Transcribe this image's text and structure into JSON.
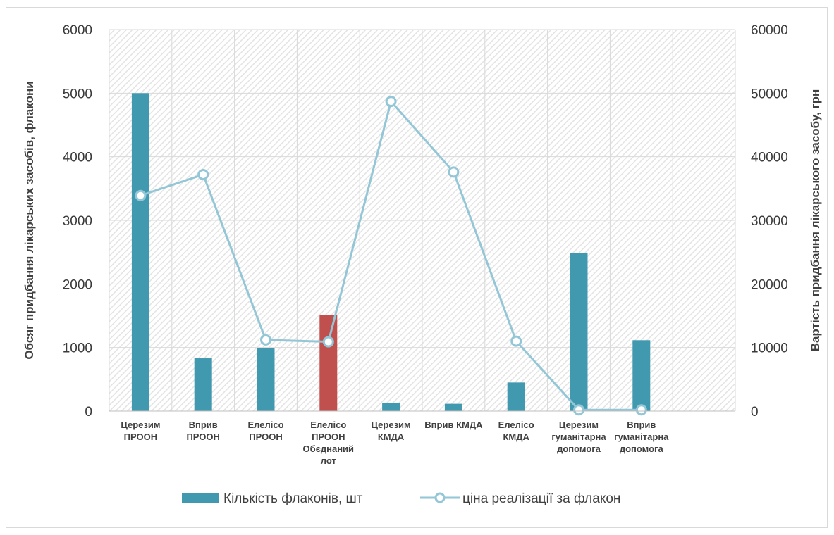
{
  "chart_data": {
    "type": "bar",
    "categories": [
      [
        "Церезим",
        "ПРООН"
      ],
      [
        "Вприв",
        "ПРООН"
      ],
      [
        "Елелісо",
        "ПРООН"
      ],
      [
        "Елелісо",
        "ПРООН",
        "Обєднаний",
        "лот"
      ],
      [
        "Церезим",
        "КМДА"
      ],
      [
        "Вприв КМДА"
      ],
      [
        "Елелісо",
        "КМДА"
      ],
      [
        "Церезим",
        "гуманітарна",
        "допомога"
      ],
      [
        "Вприв",
        "гуманітарна",
        "допомога"
      ],
      []
    ],
    "series": [
      {
        "name": "Кількість флаконів, шт",
        "type": "bar",
        "axis": "left",
        "color": "#4199b0",
        "highlight_color": "#c0504d",
        "highlight_index": 3,
        "values": [
          5000,
          830,
          990,
          1510,
          130,
          115,
          450,
          2490,
          1115,
          null
        ]
      },
      {
        "name": "ціна реалізації за флакон",
        "type": "line",
        "axis": "right",
        "color": "#93c6d6",
        "marker": "circle",
        "values": [
          33900,
          37200,
          11200,
          10900,
          48700,
          37600,
          11000,
          200,
          200,
          null
        ]
      }
    ],
    "ylabel": "Обсяг придбання лікарських засобів, флакони",
    "y2label": "Вартість придбання лікарського засобу, грн",
    "ylim": [
      0,
      6000
    ],
    "yticks": [
      0,
      1000,
      2000,
      3000,
      4000,
      5000,
      6000
    ],
    "y2lim": [
      0,
      60000
    ],
    "y2ticks": [
      0,
      10000,
      20000,
      30000,
      40000,
      50000,
      60000
    ],
    "grid": true,
    "legend_position": "bottom"
  }
}
